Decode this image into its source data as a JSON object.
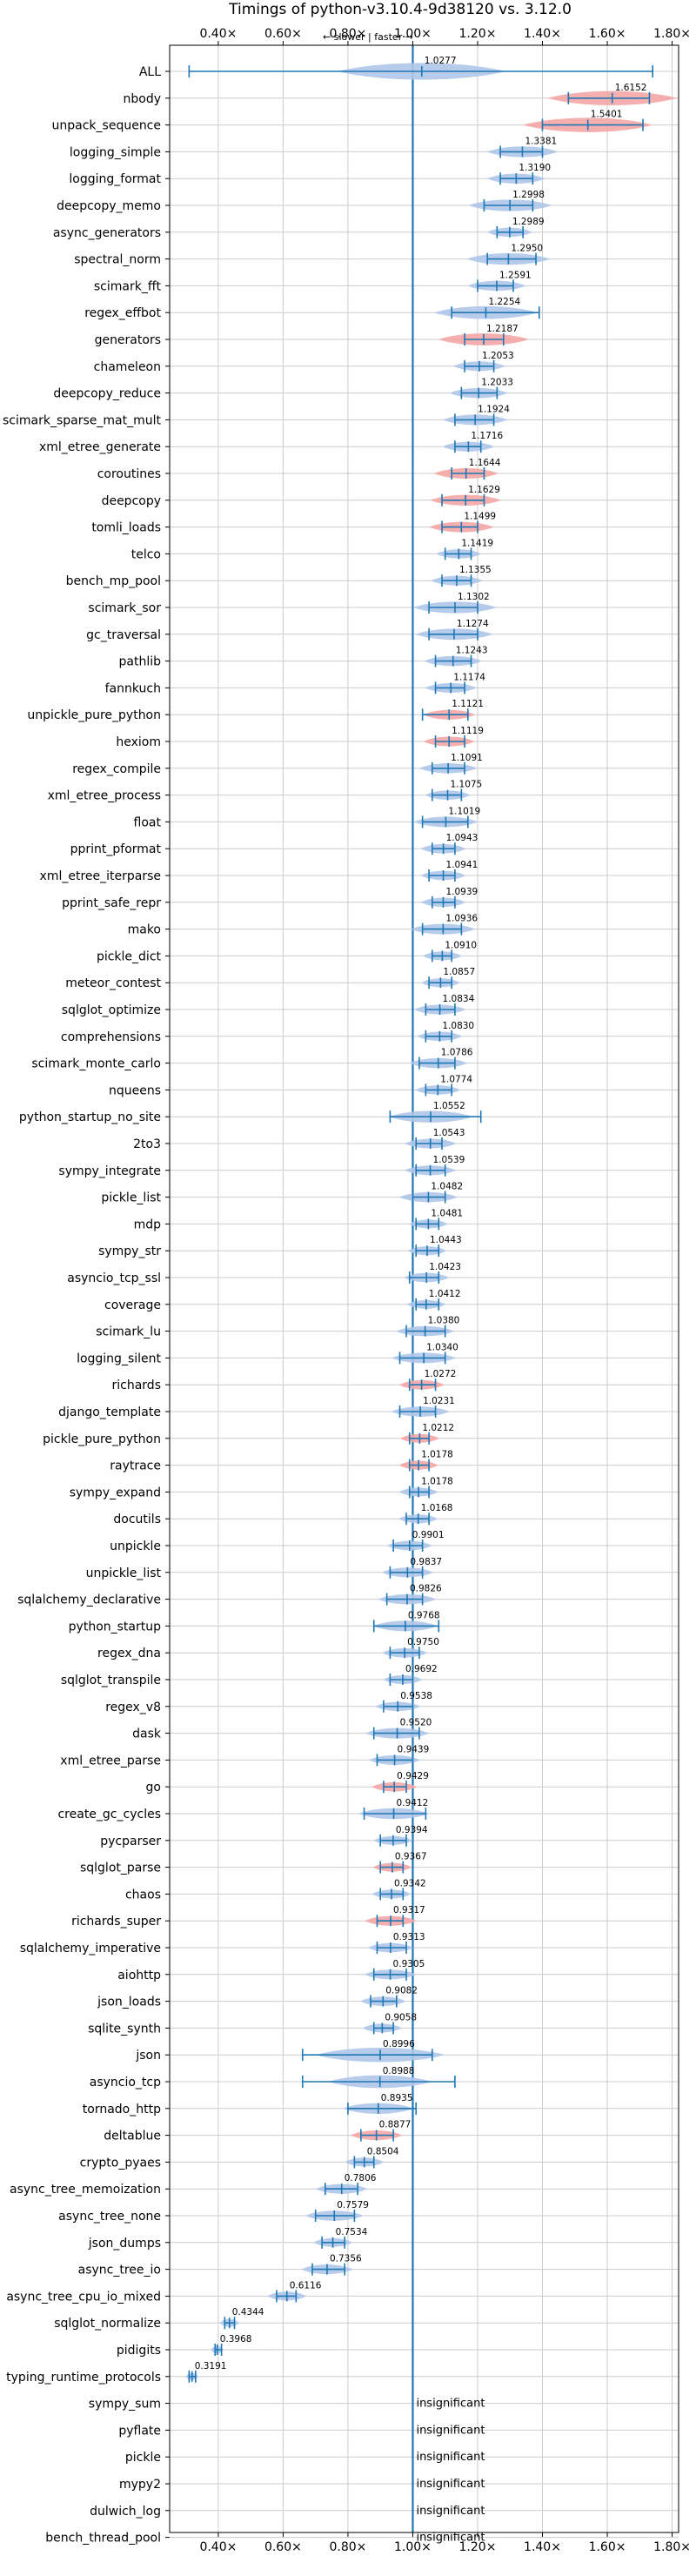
{
  "chart_data": {
    "type": "violin",
    "title": "Timings of python-v3.10.4-9d38120 vs. 3.12.0",
    "direction_label": "← slower | faster →",
    "xlim": [
      0.25,
      1.82
    ],
    "xticks": [
      0.4,
      0.6,
      0.8,
      1.0,
      1.2,
      1.4,
      1.6,
      1.8
    ],
    "xtick_labels": [
      "0.40×",
      "0.60×",
      "0.80×",
      "1.00×",
      "1.20×",
      "1.40×",
      "1.60×",
      "1.80×"
    ],
    "reference_x": 1.0,
    "grid": true,
    "colors": {
      "faster": "#aec7e8",
      "slower": "#f4a6a6",
      "line": "#1f77b4",
      "grid": "#cccccc"
    },
    "insignificant_text": "insignificant",
    "benchmarks": [
      {
        "name": "ALL",
        "value": 1.0277,
        "label": "1.0277",
        "lo": 0.31,
        "hi": 1.74,
        "kind": "faster",
        "spread": 0.26
      },
      {
        "name": "nbody",
        "value": 1.6152,
        "label": "1.6152",
        "lo": 1.48,
        "hi": 1.73,
        "kind": "slower",
        "spread": 0.2
      },
      {
        "name": "unpack_sequence",
        "value": 1.5401,
        "label": "1.5401",
        "lo": 1.4,
        "hi": 1.71,
        "kind": "slower",
        "spread": 0.2
      },
      {
        "name": "logging_simple",
        "value": 1.3381,
        "label": "1.3381",
        "lo": 1.27,
        "hi": 1.4,
        "kind": "faster",
        "spread": 0.11
      },
      {
        "name": "logging_format",
        "value": 1.319,
        "label": "1.3190",
        "lo": 1.27,
        "hi": 1.37,
        "kind": "faster",
        "spread": 0.09
      },
      {
        "name": "deepcopy_memo",
        "value": 1.2998,
        "label": "1.2998",
        "lo": 1.22,
        "hi": 1.37,
        "kind": "faster",
        "spread": 0.13
      },
      {
        "name": "async_generators",
        "value": 1.2989,
        "label": "1.2989",
        "lo": 1.26,
        "hi": 1.34,
        "kind": "faster",
        "spread": 0.07
      },
      {
        "name": "spectral_norm",
        "value": 1.295,
        "label": "1.2950",
        "lo": 1.23,
        "hi": 1.38,
        "kind": "faster",
        "spread": 0.13
      },
      {
        "name": "scimark_fft",
        "value": 1.2591,
        "label": "1.2591",
        "lo": 1.2,
        "hi": 1.31,
        "kind": "faster",
        "spread": 0.09
      },
      {
        "name": "regex_effbot",
        "value": 1.2254,
        "label": "1.2254",
        "lo": 1.12,
        "hi": 1.39,
        "kind": "faster",
        "spread": 0.16
      },
      {
        "name": "generators",
        "value": 1.2187,
        "label": "1.2187",
        "lo": 1.16,
        "hi": 1.28,
        "kind": "slower",
        "spread": 0.14
      },
      {
        "name": "chameleon",
        "value": 1.2053,
        "label": "1.2053",
        "lo": 1.16,
        "hi": 1.25,
        "kind": "faster",
        "spread": 0.08
      },
      {
        "name": "deepcopy_reduce",
        "value": 1.2033,
        "label": "1.2033",
        "lo": 1.15,
        "hi": 1.26,
        "kind": "faster",
        "spread": 0.09
      },
      {
        "name": "scimark_sparse_mat_mult",
        "value": 1.1924,
        "label": "1.1924",
        "lo": 1.13,
        "hi": 1.25,
        "kind": "faster",
        "spread": 0.1
      },
      {
        "name": "xml_etree_generate",
        "value": 1.1716,
        "label": "1.1716",
        "lo": 1.13,
        "hi": 1.21,
        "kind": "faster",
        "spread": 0.08
      },
      {
        "name": "coroutines",
        "value": 1.1644,
        "label": "1.1644",
        "lo": 1.12,
        "hi": 1.22,
        "kind": "slower",
        "spread": 0.1
      },
      {
        "name": "deepcopy",
        "value": 1.1629,
        "label": "1.1629",
        "lo": 1.09,
        "hi": 1.22,
        "kind": "slower",
        "spread": 0.11
      },
      {
        "name": "tomli_loads",
        "value": 1.1499,
        "label": "1.1499",
        "lo": 1.09,
        "hi": 1.2,
        "kind": "slower",
        "spread": 0.1
      },
      {
        "name": "telco",
        "value": 1.1419,
        "label": "1.1419",
        "lo": 1.1,
        "hi": 1.18,
        "kind": "faster",
        "spread": 0.07
      },
      {
        "name": "bench_mp_pool",
        "value": 1.1355,
        "label": "1.1355",
        "lo": 1.09,
        "hi": 1.18,
        "kind": "faster",
        "spread": 0.08
      },
      {
        "name": "scimark_sor",
        "value": 1.1302,
        "label": "1.1302",
        "lo": 1.05,
        "hi": 1.2,
        "kind": "faster",
        "spread": 0.13
      },
      {
        "name": "gc_traversal",
        "value": 1.1274,
        "label": "1.1274",
        "lo": 1.05,
        "hi": 1.2,
        "kind": "faster",
        "spread": 0.12
      },
      {
        "name": "pathlib",
        "value": 1.1243,
        "label": "1.1243",
        "lo": 1.07,
        "hi": 1.18,
        "kind": "faster",
        "spread": 0.09
      },
      {
        "name": "fannkuch",
        "value": 1.1174,
        "label": "1.1174",
        "lo": 1.07,
        "hi": 1.16,
        "kind": "faster",
        "spread": 0.08
      },
      {
        "name": "unpickle_pure_python",
        "value": 1.1121,
        "label": "1.1121",
        "lo": 1.03,
        "hi": 1.17,
        "kind": "slower",
        "spread": 0.08
      },
      {
        "name": "hexiom",
        "value": 1.1119,
        "label": "1.1119",
        "lo": 1.07,
        "hi": 1.16,
        "kind": "slower",
        "spread": 0.08
      },
      {
        "name": "regex_compile",
        "value": 1.1091,
        "label": "1.1091",
        "lo": 1.06,
        "hi": 1.16,
        "kind": "faster",
        "spread": 0.09
      },
      {
        "name": "xml_etree_process",
        "value": 1.1075,
        "label": "1.1075",
        "lo": 1.06,
        "hi": 1.15,
        "kind": "faster",
        "spread": 0.07
      },
      {
        "name": "float",
        "value": 1.1019,
        "label": "1.1019",
        "lo": 1.03,
        "hi": 1.17,
        "kind": "faster",
        "spread": 0.1
      },
      {
        "name": "pprint_pformat",
        "value": 1.0943,
        "label": "1.0943",
        "lo": 1.06,
        "hi": 1.13,
        "kind": "faster",
        "spread": 0.07
      },
      {
        "name": "xml_etree_iterparse",
        "value": 1.0941,
        "label": "1.0941",
        "lo": 1.05,
        "hi": 1.13,
        "kind": "faster",
        "spread": 0.07
      },
      {
        "name": "pprint_safe_repr",
        "value": 1.0939,
        "label": "1.0939",
        "lo": 1.06,
        "hi": 1.13,
        "kind": "faster",
        "spread": 0.07
      },
      {
        "name": "mako",
        "value": 1.0936,
        "label": "1.0936",
        "lo": 1.03,
        "hi": 1.15,
        "kind": "faster",
        "spread": 0.1
      },
      {
        "name": "pickle_dict",
        "value": 1.091,
        "label": "1.0910",
        "lo": 1.06,
        "hi": 1.12,
        "kind": "faster",
        "spread": 0.06
      },
      {
        "name": "meteor_contest",
        "value": 1.0857,
        "label": "1.0857",
        "lo": 1.05,
        "hi": 1.12,
        "kind": "faster",
        "spread": 0.06
      },
      {
        "name": "sqlglot_optimize",
        "value": 1.0834,
        "label": "1.0834",
        "lo": 1.04,
        "hi": 1.13,
        "kind": "faster",
        "spread": 0.08
      },
      {
        "name": "comprehensions",
        "value": 1.083,
        "label": "1.0830",
        "lo": 1.04,
        "hi": 1.12,
        "kind": "faster",
        "spread": 0.07
      },
      {
        "name": "scimark_monte_carlo",
        "value": 1.0786,
        "label": "1.0786",
        "lo": 1.02,
        "hi": 1.13,
        "kind": "faster",
        "spread": 0.09
      },
      {
        "name": "nqueens",
        "value": 1.0774,
        "label": "1.0774",
        "lo": 1.04,
        "hi": 1.12,
        "kind": "faster",
        "spread": 0.07
      },
      {
        "name": "python_startup_no_site",
        "value": 1.0552,
        "label": "1.0552",
        "lo": 0.93,
        "hi": 1.21,
        "kind": "faster",
        "spread": 0.13
      },
      {
        "name": "2to3",
        "value": 1.0543,
        "label": "1.0543",
        "lo": 1.01,
        "hi": 1.09,
        "kind": "faster",
        "spread": 0.08
      },
      {
        "name": "sympy_integrate",
        "value": 1.0539,
        "label": "1.0539",
        "lo": 1.01,
        "hi": 1.1,
        "kind": "faster",
        "spread": 0.08
      },
      {
        "name": "pickle_list",
        "value": 1.0482,
        "label": "1.0482",
        "lo": 1.0,
        "hi": 1.1,
        "kind": "faster",
        "spread": 0.09
      },
      {
        "name": "mdp",
        "value": 1.0481,
        "label": "1.0481",
        "lo": 1.01,
        "hi": 1.08,
        "kind": "faster",
        "spread": 0.06
      },
      {
        "name": "sympy_str",
        "value": 1.0443,
        "label": "1.0443",
        "lo": 1.01,
        "hi": 1.08,
        "kind": "faster",
        "spread": 0.06
      },
      {
        "name": "asyncio_tcp_ssl",
        "value": 1.0423,
        "label": "1.0423",
        "lo": 0.99,
        "hi": 1.08,
        "kind": "faster",
        "spread": 0.07
      },
      {
        "name": "coverage",
        "value": 1.0412,
        "label": "1.0412",
        "lo": 1.01,
        "hi": 1.08,
        "kind": "faster",
        "spread": 0.06
      },
      {
        "name": "scimark_lu",
        "value": 1.038,
        "label": "1.0380",
        "lo": 0.98,
        "hi": 1.1,
        "kind": "faster",
        "spread": 0.09
      },
      {
        "name": "logging_silent",
        "value": 1.034,
        "label": "1.0340",
        "lo": 0.96,
        "hi": 1.1,
        "kind": "faster",
        "spread": 0.1
      },
      {
        "name": "richards",
        "value": 1.0272,
        "label": "1.0272",
        "lo": 0.99,
        "hi": 1.07,
        "kind": "slower",
        "spread": 0.07
      },
      {
        "name": "django_template",
        "value": 1.0231,
        "label": "1.0231",
        "lo": 0.96,
        "hi": 1.07,
        "kind": "faster",
        "spread": 0.09
      },
      {
        "name": "pickle_pure_python",
        "value": 1.0212,
        "label": "1.0212",
        "lo": 0.99,
        "hi": 1.05,
        "kind": "slower",
        "spread": 0.06
      },
      {
        "name": "raytrace",
        "value": 1.0178,
        "label": "1.0178",
        "lo": 0.99,
        "hi": 1.05,
        "kind": "slower",
        "spread": 0.06
      },
      {
        "name": "sympy_expand",
        "value": 1.0178,
        "label": "1.0178",
        "lo": 0.99,
        "hi": 1.05,
        "kind": "faster",
        "spread": 0.06
      },
      {
        "name": "docutils",
        "value": 1.0168,
        "label": "1.0168",
        "lo": 0.98,
        "hi": 1.05,
        "kind": "faster",
        "spread": 0.06
      },
      {
        "name": "unpickle",
        "value": 0.9901,
        "label": "0.9901",
        "lo": 0.94,
        "hi": 1.03,
        "kind": "faster",
        "spread": 0.07
      },
      {
        "name": "unpickle_list",
        "value": 0.9837,
        "label": "0.9837",
        "lo": 0.93,
        "hi": 1.03,
        "kind": "faster",
        "spread": 0.08
      },
      {
        "name": "sqlalchemy_declarative",
        "value": 0.9826,
        "label": "0.9826",
        "lo": 0.92,
        "hi": 1.03,
        "kind": "faster",
        "spread": 0.09
      },
      {
        "name": "python_startup",
        "value": 0.9768,
        "label": "0.9768",
        "lo": 0.88,
        "hi": 1.08,
        "kind": "faster",
        "spread": 0.1
      },
      {
        "name": "regex_dna",
        "value": 0.975,
        "label": "0.9750",
        "lo": 0.93,
        "hi": 1.02,
        "kind": "faster",
        "spread": 0.07
      },
      {
        "name": "sqlglot_transpile",
        "value": 0.9692,
        "label": "0.9692",
        "lo": 0.93,
        "hi": 1.0,
        "kind": "faster",
        "spread": 0.06
      },
      {
        "name": "regex_v8",
        "value": 0.9538,
        "label": "0.9538",
        "lo": 0.91,
        "hi": 1.0,
        "kind": "faster",
        "spread": 0.07
      },
      {
        "name": "dask",
        "value": 0.952,
        "label": "0.9520",
        "lo": 0.88,
        "hi": 1.02,
        "kind": "faster",
        "spread": 0.1
      },
      {
        "name": "xml_etree_parse",
        "value": 0.9439,
        "label": "0.9439",
        "lo": 0.89,
        "hi": 1.0,
        "kind": "faster",
        "spread": 0.08
      },
      {
        "name": "go",
        "value": 0.9429,
        "label": "0.9429",
        "lo": 0.91,
        "hi": 0.98,
        "kind": "slower",
        "spread": 0.07
      },
      {
        "name": "create_gc_cycles",
        "value": 0.9412,
        "label": "0.9412",
        "lo": 0.85,
        "hi": 1.04,
        "kind": "faster",
        "spread": 0.11
      },
      {
        "name": "pycparser",
        "value": 0.9394,
        "label": "0.9394",
        "lo": 0.9,
        "hi": 0.98,
        "kind": "faster",
        "spread": 0.06
      },
      {
        "name": "sqlglot_parse",
        "value": 0.9367,
        "label": "0.9367",
        "lo": 0.9,
        "hi": 0.97,
        "kind": "slower",
        "spread": 0.06
      },
      {
        "name": "chaos",
        "value": 0.9342,
        "label": "0.9342",
        "lo": 0.9,
        "hi": 0.97,
        "kind": "faster",
        "spread": 0.06
      },
      {
        "name": "richards_super",
        "value": 0.9317,
        "label": "0.9317",
        "lo": 0.89,
        "hi": 0.97,
        "kind": "slower",
        "spread": 0.08
      },
      {
        "name": "sqlalchemy_imperative",
        "value": 0.9313,
        "label": "0.9313",
        "lo": 0.89,
        "hi": 0.98,
        "kind": "faster",
        "spread": 0.07
      },
      {
        "name": "aiohttp",
        "value": 0.9305,
        "label": "0.9305",
        "lo": 0.88,
        "hi": 0.98,
        "kind": "faster",
        "spread": 0.08
      },
      {
        "name": "json_loads",
        "value": 0.9082,
        "label": "0.9082",
        "lo": 0.87,
        "hi": 0.95,
        "kind": "faster",
        "spread": 0.07
      },
      {
        "name": "sqlite_synth",
        "value": 0.9058,
        "label": "0.9058",
        "lo": 0.88,
        "hi": 0.94,
        "kind": "faster",
        "spread": 0.06
      },
      {
        "name": "json",
        "value": 0.8996,
        "label": "0.8996",
        "lo": 0.66,
        "hi": 1.06,
        "kind": "faster",
        "spread": 0.2
      },
      {
        "name": "asyncio_tcp",
        "value": 0.8988,
        "label": "0.8988",
        "lo": 0.66,
        "hi": 1.13,
        "kind": "faster",
        "spread": 0.16
      },
      {
        "name": "tornado_http",
        "value": 0.8935,
        "label": "0.8935",
        "lo": 0.8,
        "hi": 1.01,
        "kind": "faster",
        "spread": 0.11
      },
      {
        "name": "deltablue",
        "value": 0.8877,
        "label": "0.8877",
        "lo": 0.84,
        "hi": 0.94,
        "kind": "slower",
        "spread": 0.08
      },
      {
        "name": "crypto_pyaes",
        "value": 0.8504,
        "label": "0.8504",
        "lo": 0.82,
        "hi": 0.88,
        "kind": "faster",
        "spread": 0.06
      },
      {
        "name": "async_tree_memoization",
        "value": 0.7806,
        "label": "0.7806",
        "lo": 0.73,
        "hi": 0.83,
        "kind": "faster",
        "spread": 0.08
      },
      {
        "name": "async_tree_none",
        "value": 0.7579,
        "label": "0.7579",
        "lo": 0.7,
        "hi": 0.82,
        "kind": "faster",
        "spread": 0.09
      },
      {
        "name": "json_dumps",
        "value": 0.7534,
        "label": "0.7534",
        "lo": 0.72,
        "hi": 0.79,
        "kind": "faster",
        "spread": 0.06
      },
      {
        "name": "async_tree_io",
        "value": 0.7356,
        "label": "0.7356",
        "lo": 0.69,
        "hi": 0.79,
        "kind": "faster",
        "spread": 0.08
      },
      {
        "name": "async_tree_cpu_io_mixed",
        "value": 0.6116,
        "label": "0.6116",
        "lo": 0.58,
        "hi": 0.64,
        "kind": "faster",
        "spread": 0.06
      },
      {
        "name": "sqlglot_normalize",
        "value": 0.4344,
        "label": "0.4344",
        "lo": 0.42,
        "hi": 0.45,
        "kind": "faster",
        "spread": 0.03
      },
      {
        "name": "pidigits",
        "value": 0.3968,
        "label": "0.3968",
        "lo": 0.39,
        "hi": 0.41,
        "kind": "faster",
        "spread": 0.02
      },
      {
        "name": "typing_runtime_protocols",
        "value": 0.3191,
        "label": "0.3191",
        "lo": 0.31,
        "hi": 0.33,
        "kind": "faster",
        "spread": 0.02
      },
      {
        "name": "sympy_sum",
        "insignificant": true
      },
      {
        "name": "pyflate",
        "insignificant": true
      },
      {
        "name": "pickle",
        "insignificant": true
      },
      {
        "name": "mypy2",
        "insignificant": true
      },
      {
        "name": "dulwich_log",
        "insignificant": true
      },
      {
        "name": "bench_thread_pool",
        "insignificant": true
      }
    ]
  }
}
